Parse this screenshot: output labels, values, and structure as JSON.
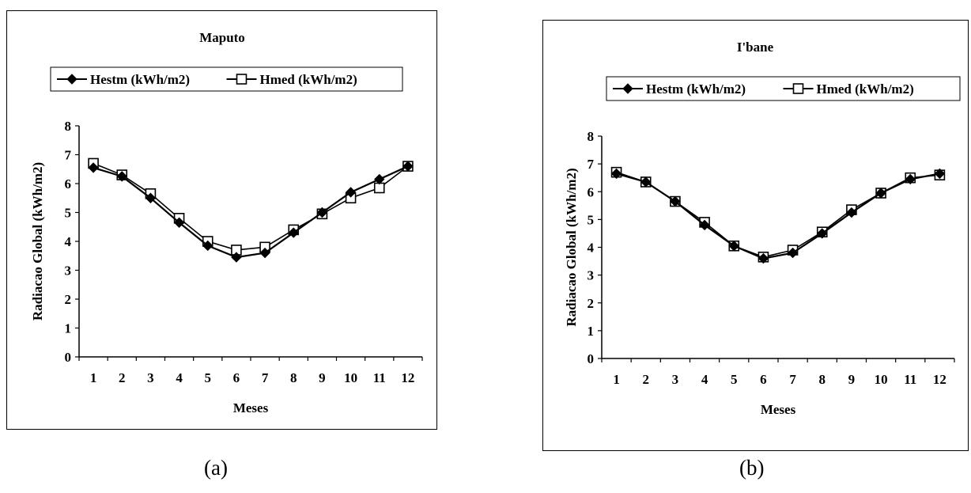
{
  "captions": [
    "(a)",
    "(b)"
  ],
  "chart_data": [
    {
      "type": "line",
      "title": "Maputo",
      "xlabel": "Meses",
      "ylabel": "Radiacao Global (kWh/m2)",
      "categories": [
        "1",
        "2",
        "3",
        "4",
        "5",
        "6",
        "7",
        "8",
        "9",
        "10",
        "11",
        "12"
      ],
      "ylim": [
        0,
        8
      ],
      "yticks": [
        "0",
        "1",
        "2",
        "3",
        "4",
        "5",
        "6",
        "7",
        "8"
      ],
      "grid": false,
      "legend_position": "top",
      "series": [
        {
          "name": "Hestm (kWh/m2)",
          "marker": "filled-diamond",
          "values": [
            6.55,
            6.25,
            5.5,
            4.65,
            3.85,
            3.45,
            3.6,
            4.3,
            5.0,
            5.7,
            6.15,
            6.6
          ]
        },
        {
          "name": "Hmed (kWh/m2)",
          "marker": "open-square",
          "values": [
            6.7,
            6.3,
            5.65,
            4.8,
            4.0,
            3.7,
            3.8,
            4.4,
            4.95,
            5.5,
            5.85,
            6.6
          ]
        }
      ]
    },
    {
      "type": "line",
      "title": "I'bane",
      "xlabel": "Meses",
      "ylabel": "Radiacao Global (kWh/m2)",
      "categories": [
        "1",
        "2",
        "3",
        "4",
        "5",
        "6",
        "7",
        "8",
        "9",
        "10",
        "11",
        "12"
      ],
      "ylim": [
        0,
        8
      ],
      "yticks": [
        "0",
        "1",
        "2",
        "3",
        "4",
        "5",
        "6",
        "7",
        "8"
      ],
      "grid": false,
      "legend_position": "top",
      "series": [
        {
          "name": "Hestm (kWh/m2)",
          "marker": "filled-diamond",
          "values": [
            6.65,
            6.35,
            5.65,
            4.8,
            4.05,
            3.6,
            3.8,
            4.5,
            5.25,
            5.95,
            6.45,
            6.65
          ]
        },
        {
          "name": "Hmed (kWh/m2)",
          "marker": "open-square",
          "values": [
            6.7,
            6.35,
            5.65,
            4.9,
            4.05,
            3.65,
            3.9,
            4.55,
            5.35,
            5.95,
            6.5,
            6.6
          ]
        }
      ]
    }
  ]
}
